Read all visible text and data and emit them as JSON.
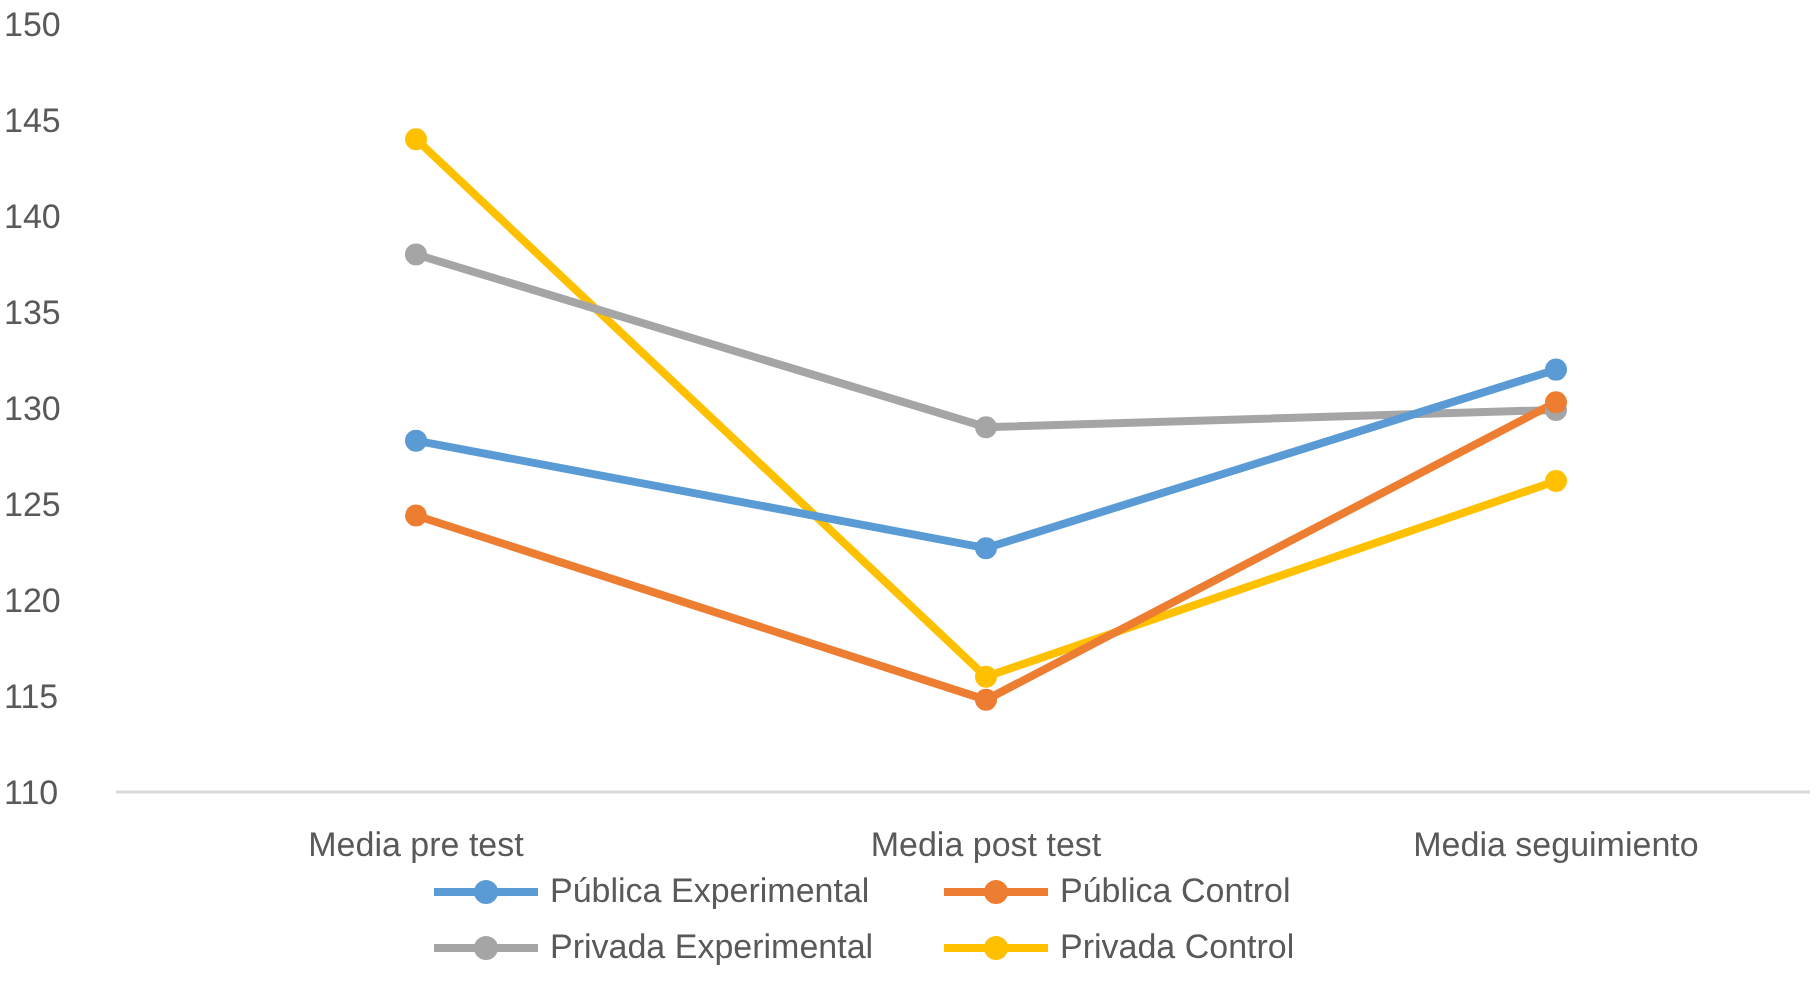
{
  "chart_data": {
    "type": "line",
    "categories": [
      "Media pre test",
      "Media post test",
      "Media seguimiento"
    ],
    "series": [
      {
        "name": "Pública Experimental",
        "color": "#5b9bd5",
        "values": [
          128.3,
          122.7,
          132.0
        ]
      },
      {
        "name": "Pública Control",
        "color": "#ed7d31",
        "values": [
          124.4,
          114.8,
          130.3
        ]
      },
      {
        "name": "Privada Experimental",
        "color": "#a5a5a5",
        "values": [
          138.0,
          129.0,
          129.9
        ]
      },
      {
        "name": "Privada Control",
        "color": "#ffc000",
        "values": [
          144.0,
          116.0,
          126.2
        ]
      }
    ],
    "ylim": [
      110,
      150
    ],
    "yticks": [
      110,
      115,
      120,
      125,
      130,
      135,
      140,
      145,
      150
    ],
    "grid": false,
    "legend": "bottom",
    "marker": "circle",
    "line_style": "solid"
  }
}
